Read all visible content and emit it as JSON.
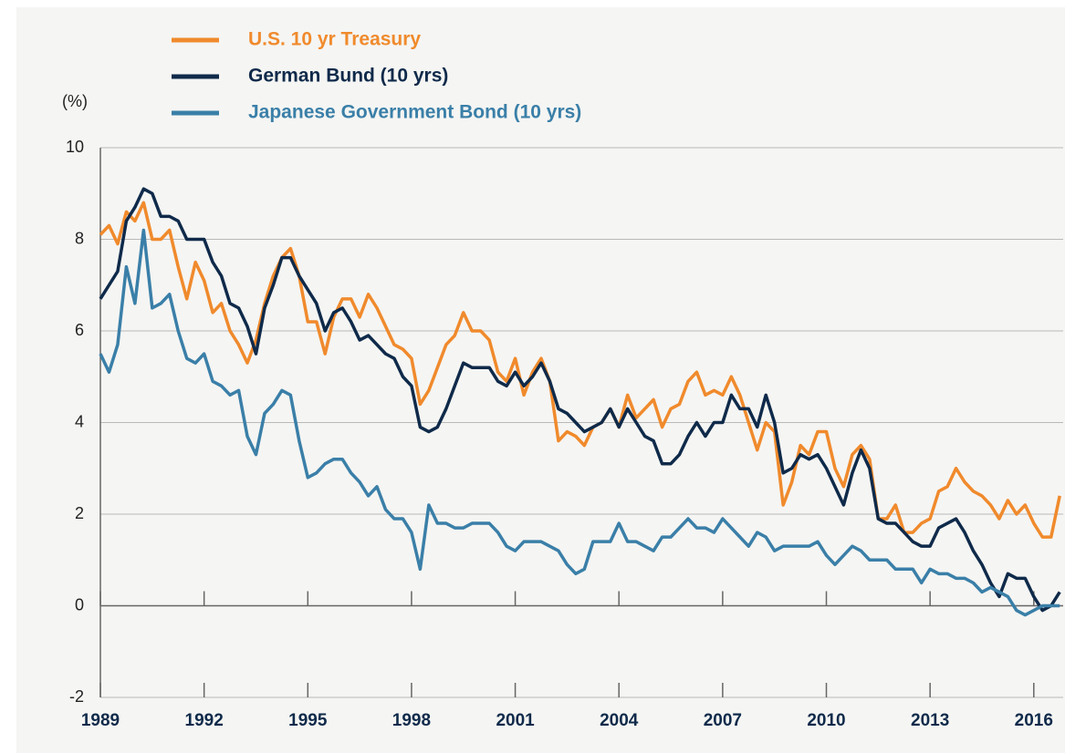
{
  "chart_data": {
    "type": "line",
    "y_label": "(%)",
    "x": [
      1989,
      1989.25,
      1989.5,
      1989.75,
      1990,
      1990.25,
      1990.5,
      1990.75,
      1991,
      1991.25,
      1991.5,
      1991.75,
      1992,
      1992.25,
      1992.5,
      1992.75,
      1993,
      1993.25,
      1993.5,
      1993.75,
      1994,
      1994.25,
      1994.5,
      1994.75,
      1995,
      1995.25,
      1995.5,
      1995.75,
      1996,
      1996.25,
      1996.5,
      1996.75,
      1997,
      1997.25,
      1997.5,
      1997.75,
      1998,
      1998.25,
      1998.5,
      1998.75,
      1999,
      1999.25,
      1999.5,
      1999.75,
      2000,
      2000.25,
      2000.5,
      2000.75,
      2001,
      2001.25,
      2001.5,
      2001.75,
      2002,
      2002.25,
      2002.5,
      2002.75,
      2003,
      2003.25,
      2003.5,
      2003.75,
      2004,
      2004.25,
      2004.5,
      2004.75,
      2005,
      2005.25,
      2005.5,
      2005.75,
      2006,
      2006.25,
      2006.5,
      2006.75,
      2007,
      2007.25,
      2007.5,
      2007.75,
      2008,
      2008.25,
      2008.5,
      2008.75,
      2009,
      2009.25,
      2009.5,
      2009.75,
      2010,
      2010.25,
      2010.5,
      2010.75,
      2011,
      2011.25,
      2011.5,
      2011.75,
      2012,
      2012.25,
      2012.5,
      2012.75,
      2013,
      2013.25,
      2013.5,
      2013.75,
      2014,
      2014.25,
      2014.5,
      2014.75,
      2015,
      2015.25,
      2015.5,
      2015.75,
      2016,
      2016.25,
      2016.5,
      2016.75
    ],
    "series": [
      {
        "name": "U.S. 10 yr Treasury",
        "color": "#f08a2c",
        "values": [
          8.1,
          8.3,
          7.9,
          8.6,
          8.4,
          8.8,
          8.0,
          8.0,
          8.2,
          7.4,
          6.7,
          7.5,
          7.1,
          6.4,
          6.6,
          6.0,
          5.7,
          5.3,
          5.8,
          6.6,
          7.2,
          7.6,
          7.8,
          7.2,
          6.2,
          6.2,
          5.5,
          6.3,
          6.7,
          6.7,
          6.3,
          6.8,
          6.5,
          6.1,
          5.7,
          5.6,
          5.4,
          4.4,
          4.7,
          5.2,
          5.7,
          5.9,
          6.4,
          6.0,
          6.0,
          5.8,
          5.1,
          4.9,
          5.4,
          4.6,
          5.1,
          5.4,
          4.9,
          3.6,
          3.8,
          3.7,
          3.5,
          3.9,
          4.0,
          4.3,
          3.9,
          4.6,
          4.1,
          4.3,
          4.5,
          3.9,
          4.3,
          4.4,
          4.9,
          5.1,
          4.6,
          4.7,
          4.6,
          5.0,
          4.6,
          4.0,
          3.4,
          4.0,
          3.8,
          2.2,
          2.7,
          3.5,
          3.3,
          3.8,
          3.8,
          3.0,
          2.6,
          3.3,
          3.5,
          3.2,
          1.9,
          1.9,
          2.2,
          1.6,
          1.6,
          1.8,
          1.9,
          2.5,
          2.6,
          3.0,
          2.7,
          2.5,
          2.4,
          2.2,
          1.9,
          2.3,
          2.0,
          2.2,
          1.8,
          1.5,
          1.5,
          2.4
        ]
      },
      {
        "name": "German Bund (10 yrs)",
        "color": "#0f2a4a",
        "values": [
          6.7,
          7.0,
          7.3,
          8.4,
          8.7,
          9.1,
          9.0,
          8.5,
          8.5,
          8.4,
          8.0,
          8.0,
          8.0,
          7.5,
          7.2,
          6.6,
          6.5,
          6.1,
          5.5,
          6.5,
          7.0,
          7.6,
          7.6,
          7.2,
          6.9,
          6.6,
          6.0,
          6.4,
          6.5,
          6.2,
          5.8,
          5.9,
          5.7,
          5.5,
          5.4,
          5.0,
          4.8,
          3.9,
          3.8,
          3.9,
          4.3,
          4.8,
          5.3,
          5.2,
          5.2,
          5.2,
          4.9,
          4.8,
          5.1,
          4.8,
          5.0,
          5.3,
          4.9,
          4.3,
          4.2,
          4.0,
          3.8,
          3.9,
          4.0,
          4.3,
          3.9,
          4.3,
          4.0,
          3.7,
          3.6,
          3.1,
          3.1,
          3.3,
          3.7,
          4.0,
          3.7,
          4.0,
          4.0,
          4.6,
          4.3,
          4.3,
          3.9,
          4.6,
          4.0,
          2.9,
          3.0,
          3.3,
          3.2,
          3.3,
          3.0,
          2.6,
          2.2,
          2.9,
          3.4,
          3.0,
          1.9,
          1.8,
          1.8,
          1.6,
          1.4,
          1.3,
          1.3,
          1.7,
          1.8,
          1.9,
          1.6,
          1.2,
          0.9,
          0.5,
          0.2,
          0.7,
          0.6,
          0.6,
          0.2,
          -0.1,
          0.0,
          0.3
        ]
      },
      {
        "name": "Japanese Government Bond (10 yrs)",
        "color": "#3a7fa8",
        "values": [
          5.5,
          5.1,
          5.7,
          7.4,
          6.6,
          8.2,
          6.5,
          6.6,
          6.8,
          6.0,
          5.4,
          5.3,
          5.5,
          4.9,
          4.8,
          4.6,
          4.7,
          3.7,
          3.3,
          4.2,
          4.4,
          4.7,
          4.6,
          3.6,
          2.8,
          2.9,
          3.1,
          3.2,
          3.2,
          2.9,
          2.7,
          2.4,
          2.6,
          2.1,
          1.9,
          1.9,
          1.6,
          0.8,
          2.2,
          1.8,
          1.8,
          1.7,
          1.7,
          1.8,
          1.8,
          1.8,
          1.6,
          1.3,
          1.2,
          1.4,
          1.4,
          1.4,
          1.3,
          1.2,
          0.9,
          0.7,
          0.8,
          1.4,
          1.4,
          1.4,
          1.8,
          1.4,
          1.4,
          1.3,
          1.2,
          1.5,
          1.5,
          1.7,
          1.9,
          1.7,
          1.7,
          1.6,
          1.9,
          1.7,
          1.5,
          1.3,
          1.6,
          1.5,
          1.2,
          1.3,
          1.3,
          1.3,
          1.3,
          1.4,
          1.1,
          0.9,
          1.1,
          1.3,
          1.2,
          1.0,
          1.0,
          1.0,
          0.8,
          0.8,
          0.8,
          0.5,
          0.8,
          0.7,
          0.7,
          0.6,
          0.6,
          0.5,
          0.3,
          0.4,
          0.3,
          0.2,
          -0.1,
          -0.2,
          -0.1,
          0.0,
          0.0,
          0.0
        ]
      }
    ],
    "xlim": [
      1989,
      2016.85
    ],
    "xticks": [
      1989,
      1992,
      1995,
      1998,
      2001,
      2004,
      2007,
      2010,
      2013,
      2016
    ],
    "ylim": [
      -2,
      10
    ],
    "yticks": [
      -2,
      0,
      2,
      4,
      6,
      8,
      10
    ],
    "grid": true
  }
}
